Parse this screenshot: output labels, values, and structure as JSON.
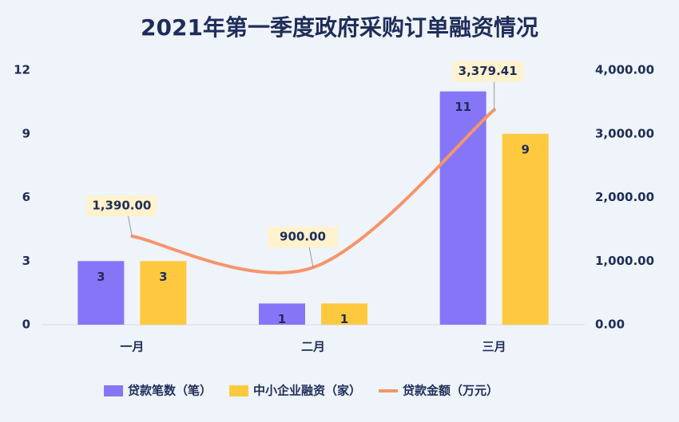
{
  "chart_data": {
    "type": "bar_line",
    "title": "2021年第一季度政府采购订单融资情况",
    "categories": [
      "一月",
      "二月",
      "三月"
    ],
    "series": [
      {
        "name": "贷款笔数（笔）",
        "color": "#8676f7",
        "values": [
          3,
          1,
          11
        ]
      },
      {
        "name": "中小企业融资（家）",
        "color": "#ffc93f",
        "values": [
          3,
          1,
          9
        ]
      },
      {
        "name": "贷款金额（万元）",
        "color": "#f5956b",
        "axis": "y2",
        "values": [
          1390,
          900,
          3379.41
        ],
        "value_labels": [
          "1,390.00",
          "900.00",
          "3,379.41"
        ]
      }
    ],
    "ylim": [
      0,
      12
    ],
    "yticks": [
      0,
      3,
      6,
      9,
      12
    ],
    "y2lim": [
      0,
      4000
    ],
    "y2ticks": [
      {
        "value": 0,
        "label": "0.00"
      },
      {
        "value": 1000,
        "label": "1,000.00"
      },
      {
        "value": 2000,
        "label": "2,000.00"
      },
      {
        "value": 3000,
        "label": "3,000.00"
      },
      {
        "value": 4000,
        "label": "4,000.00"
      }
    ]
  }
}
